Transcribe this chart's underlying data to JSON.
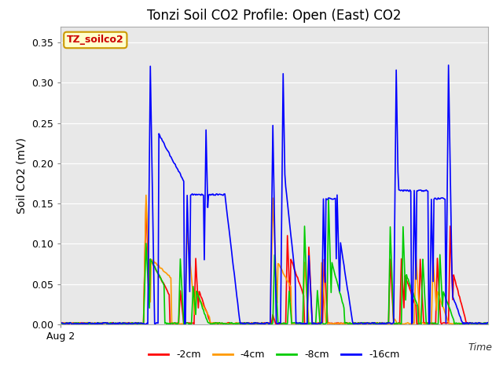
{
  "title": "Tonzi Soil CO2 Profile: Open (East) CO2",
  "ylabel": "Soil CO2 (mV)",
  "xlabel": "Time",
  "xlabel_x_label": "Aug 2",
  "ylim": [
    0.0,
    0.37
  ],
  "yticks": [
    0.0,
    0.05,
    0.1,
    0.15,
    0.2,
    0.25,
    0.3,
    0.35
  ],
  "fig_bg_color": "#ffffff",
  "plot_bg_color": "#e8e8e8",
  "legend_label": "TZ_soilco2",
  "series_labels": [
    "-2cm",
    "-4cm",
    "-8cm",
    "-16cm"
  ],
  "series_colors": [
    "#ff0000",
    "#ff9900",
    "#00cc00",
    "#0000ff"
  ],
  "line_width": 1.2,
  "title_fontsize": 12,
  "label_fontsize": 10,
  "tick_fontsize": 9
}
